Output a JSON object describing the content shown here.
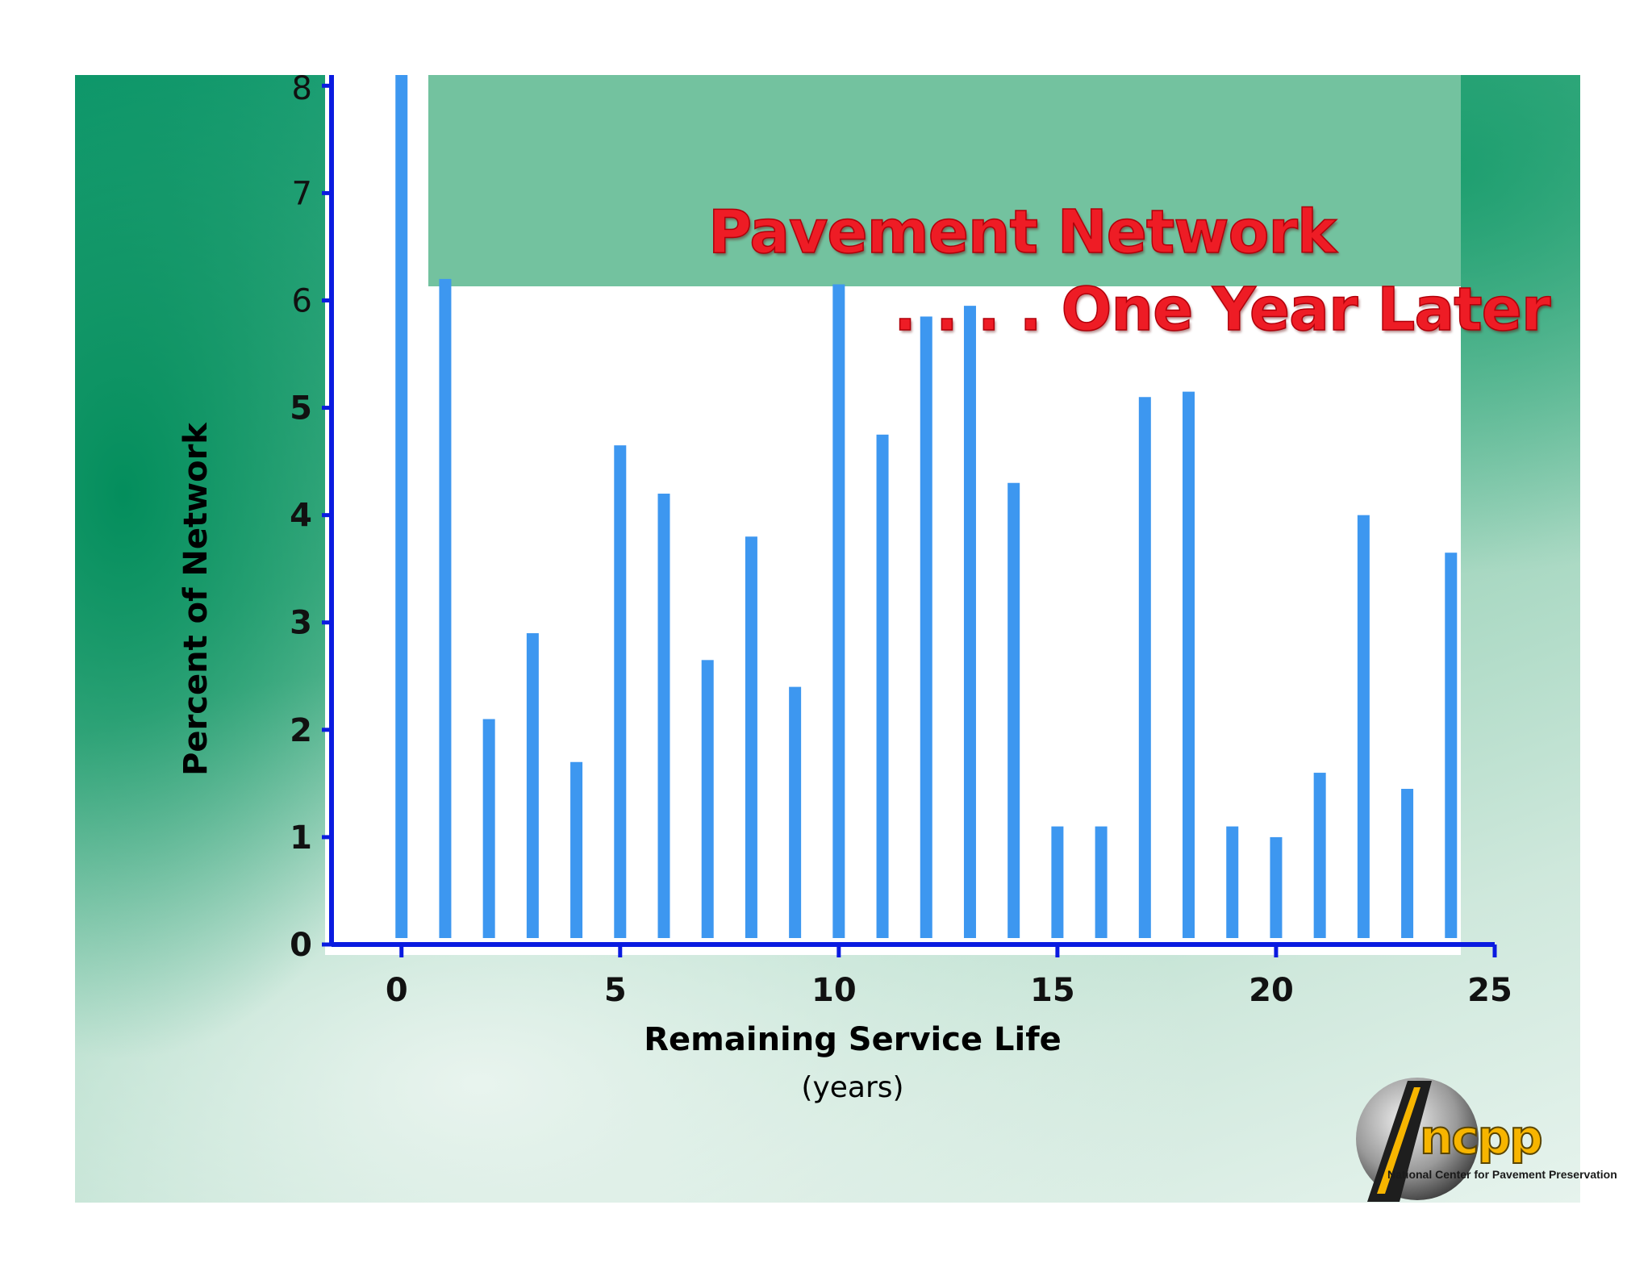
{
  "slide": {
    "title_line1": "Pavement Network",
    "title_line2": ". . . . One Year Later",
    "logo_name": "ncpp",
    "logo_subtitle": "National Center for Pavement Preservation"
  },
  "chart_data": {
    "type": "bar",
    "title": "",
    "xlabel": "Remaining Service Life",
    "xlabel_sub": "(years)",
    "ylabel": "Percent of Network",
    "x": [
      0,
      1,
      2,
      3,
      4,
      5,
      6,
      7,
      8,
      9,
      10,
      11,
      12,
      13,
      14,
      15,
      16,
      17,
      18,
      19,
      20,
      21,
      22,
      23,
      24
    ],
    "values": [
      8.1,
      6.2,
      2.1,
      2.9,
      1.7,
      4.65,
      4.2,
      2.65,
      3.8,
      2.4,
      6.15,
      4.75,
      5.85,
      5.95,
      4.3,
      1.1,
      1.1,
      5.1,
      5.15,
      1.1,
      1.0,
      1.6,
      4.0,
      1.45,
      3.65
    ],
    "xlim": [
      -1.6,
      25
    ],
    "ylim": [
      0,
      8.1
    ],
    "x_ticks": [
      0,
      5,
      10,
      15,
      20,
      25
    ],
    "y_ticks": [
      0,
      1,
      2,
      3,
      4,
      5,
      6,
      7,
      8
    ],
    "grid": false,
    "colors": {
      "bar": "#3d97f0",
      "axis": "#0a1be0",
      "plot_bg": "#ffffff"
    }
  }
}
